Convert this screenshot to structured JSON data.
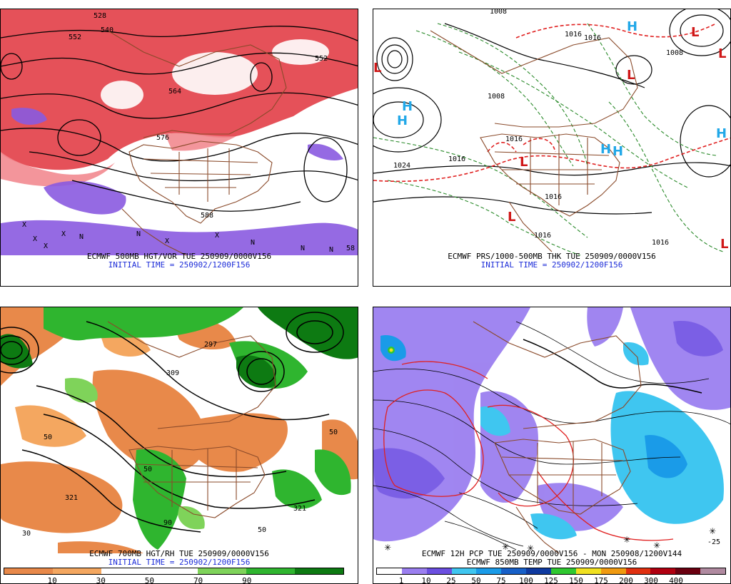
{
  "panels": {
    "tl": {
      "caption1": "ECMWF 500MB HGT/VOR TUE 250909/0000V156",
      "caption2": "INITIAL TIME = 250902/1200F156",
      "contour_labels": [
        "528",
        "540",
        "552",
        "552",
        "564",
        "576",
        "588",
        "58"
      ]
    },
    "tr": {
      "caption1": "ECMWF PRS/1000-500MB THK TUE 250909/0000V156",
      "caption2": "INITIAL TIME = 250902/1200F156",
      "contour_labels": [
        "1008",
        "1016",
        "1008",
        "1016",
        "1024",
        "1016",
        "1016",
        "1008",
        "1016",
        "1016",
        "1016"
      ]
    },
    "bl": {
      "caption1": "ECMWF 700MB HGT/RH TUE 250909/0000V156",
      "caption2": "INITIAL TIME = 250902/1200F156",
      "contour_labels": [
        "297",
        "321",
        "50",
        "50",
        "50",
        "30",
        "321",
        "90",
        "50",
        "309"
      ],
      "colorbar": {
        "colors": [
          "#e8894a",
          "#f4a760",
          "#ffffff",
          "#ffffff",
          "#7fd35a",
          "#2fb52f",
          "#0d7a12"
        ],
        "ticks": [
          "10",
          "30",
          "50",
          "70",
          "90"
        ]
      }
    },
    "br": {
      "caption1": "ECMWF 12H PCP TUE 250909/0000V156 - MON 250908/1200V144",
      "caption2": "ECMWF 850MB TEMP TUE 250909/0000V156",
      "contour_labels": [
        "-25"
      ],
      "colorbar": {
        "colors": [
          "#ffffff",
          "#9b7ff0",
          "#6b4fe0",
          "#3fc6f0",
          "#1a9be8",
          "#1760c8",
          "#0f3aa0",
          "#2fc830",
          "#f0e020",
          "#f09a10",
          "#e03010",
          "#b00010",
          "#6a0010",
          "#b08aa0"
        ],
        "ticks": [
          "1",
          "10",
          "25",
          "50",
          "75",
          "100",
          "125",
          "150",
          "175",
          "200",
          "300",
          "400"
        ]
      }
    }
  },
  "pressure_centers": {
    "tr": [
      "H",
      "H",
      "H",
      "H",
      "H",
      "H",
      "L",
      "L",
      "L",
      "L",
      "L",
      "L",
      "L"
    ]
  },
  "colors": {
    "caption_blue": "#1b2bd8",
    "coast": "#8a4a2a",
    "vort_red": "#e0323c",
    "vort_purple": "#8a5ae0",
    "high_blue": "#22a8e8",
    "low_red": "#d01818"
  }
}
